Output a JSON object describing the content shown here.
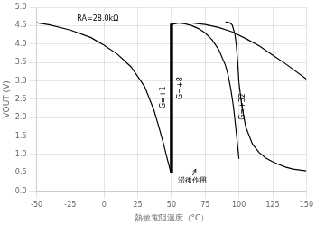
{
  "chart_data": {
    "type": "line",
    "xlabel": "熱敏電阻溫度（°C）",
    "ylabel": "VOUT (V)",
    "xlim": [
      -50,
      150
    ],
    "ylim": [
      0.0,
      5.0
    ],
    "xticks": [
      -50,
      -25,
      0,
      25,
      50,
      75,
      100,
      125,
      150
    ],
    "yticks": [
      {
        "value": 0.0,
        "label": "0.0"
      },
      0.5,
      {
        "value": 1.0,
        "label": "1.0"
      },
      1.5,
      {
        "value": 2.0,
        "label": "2.0"
      },
      2.5,
      {
        "value": 3.0,
        "label": "3.0"
      },
      3.5,
      {
        "value": 4.0,
        "label": "4.0"
      },
      4.5,
      {
        "value": 5.0,
        "label": "5.0"
      }
    ],
    "grid": true,
    "series": [
      {
        "color": "black",
        "x": [
          -50,
          -40,
          -25,
          -10,
          0,
          10,
          20,
          30,
          37,
          41,
          44,
          46,
          48,
          49,
          50
        ],
        "values": [
          4.58,
          4.52,
          4.38,
          4.18,
          3.97,
          3.72,
          3.38,
          2.85,
          2.2,
          1.7,
          1.3,
          1.0,
          0.72,
          0.58,
          0.48
        ]
      },
      {
        "color": "black",
        "x": [
          50,
          52,
          55,
          65,
          75,
          85,
          95,
          105,
          115,
          125,
          135,
          150
        ],
        "values": [
          4.52,
          4.55,
          4.57,
          4.57,
          4.53,
          4.45,
          4.33,
          4.15,
          3.95,
          3.7,
          3.45,
          3.05
        ]
      },
      {
        "color": "black",
        "x": [
          50,
          55,
          60,
          65,
          70,
          75,
          80,
          85,
          90,
          92,
          94,
          96,
          97,
          98,
          99,
          100
        ],
        "values": [
          4.55,
          4.57,
          4.55,
          4.5,
          4.42,
          4.3,
          4.12,
          3.85,
          3.42,
          3.15,
          2.77,
          2.28,
          1.95,
          1.6,
          1.25,
          0.88
        ]
      },
      {
        "color": "black",
        "x": [
          90,
          93,
          95,
          97,
          98,
          99,
          100
        ],
        "values": [
          4.6,
          4.58,
          4.52,
          4.27,
          3.98,
          3.55,
          2.95
        ]
      },
      {
        "color": "black",
        "x": [
          100,
          102,
          105,
          110,
          115,
          120,
          125,
          130,
          135,
          140,
          150
        ],
        "values": [
          2.95,
          2.35,
          1.75,
          1.28,
          1.05,
          0.9,
          0.8,
          0.72,
          0.65,
          0.6,
          0.55
        ]
      }
    ],
    "vertical_lines": [
      {
        "color": "black",
        "x": 50,
        "y": [
          0.48,
          4.55
        ]
      }
    ],
    "curve_labels": [
      {
        "text": "G=+1",
        "x": 44,
        "y": 2.55
      },
      {
        "text": "G=+8",
        "x": 57,
        "y": 2.8
      },
      {
        "text": "G=+32",
        "x": 103,
        "y": 2.3
      }
    ],
    "annotations": [
      {
        "text": "RA=28.0kΩ",
        "x": -20,
        "y": 4.68
      },
      {
        "text": "滞後作用",
        "x": 55,
        "y": 0.28,
        "arrow_to": [
          68,
          0.6
        ]
      }
    ]
  }
}
